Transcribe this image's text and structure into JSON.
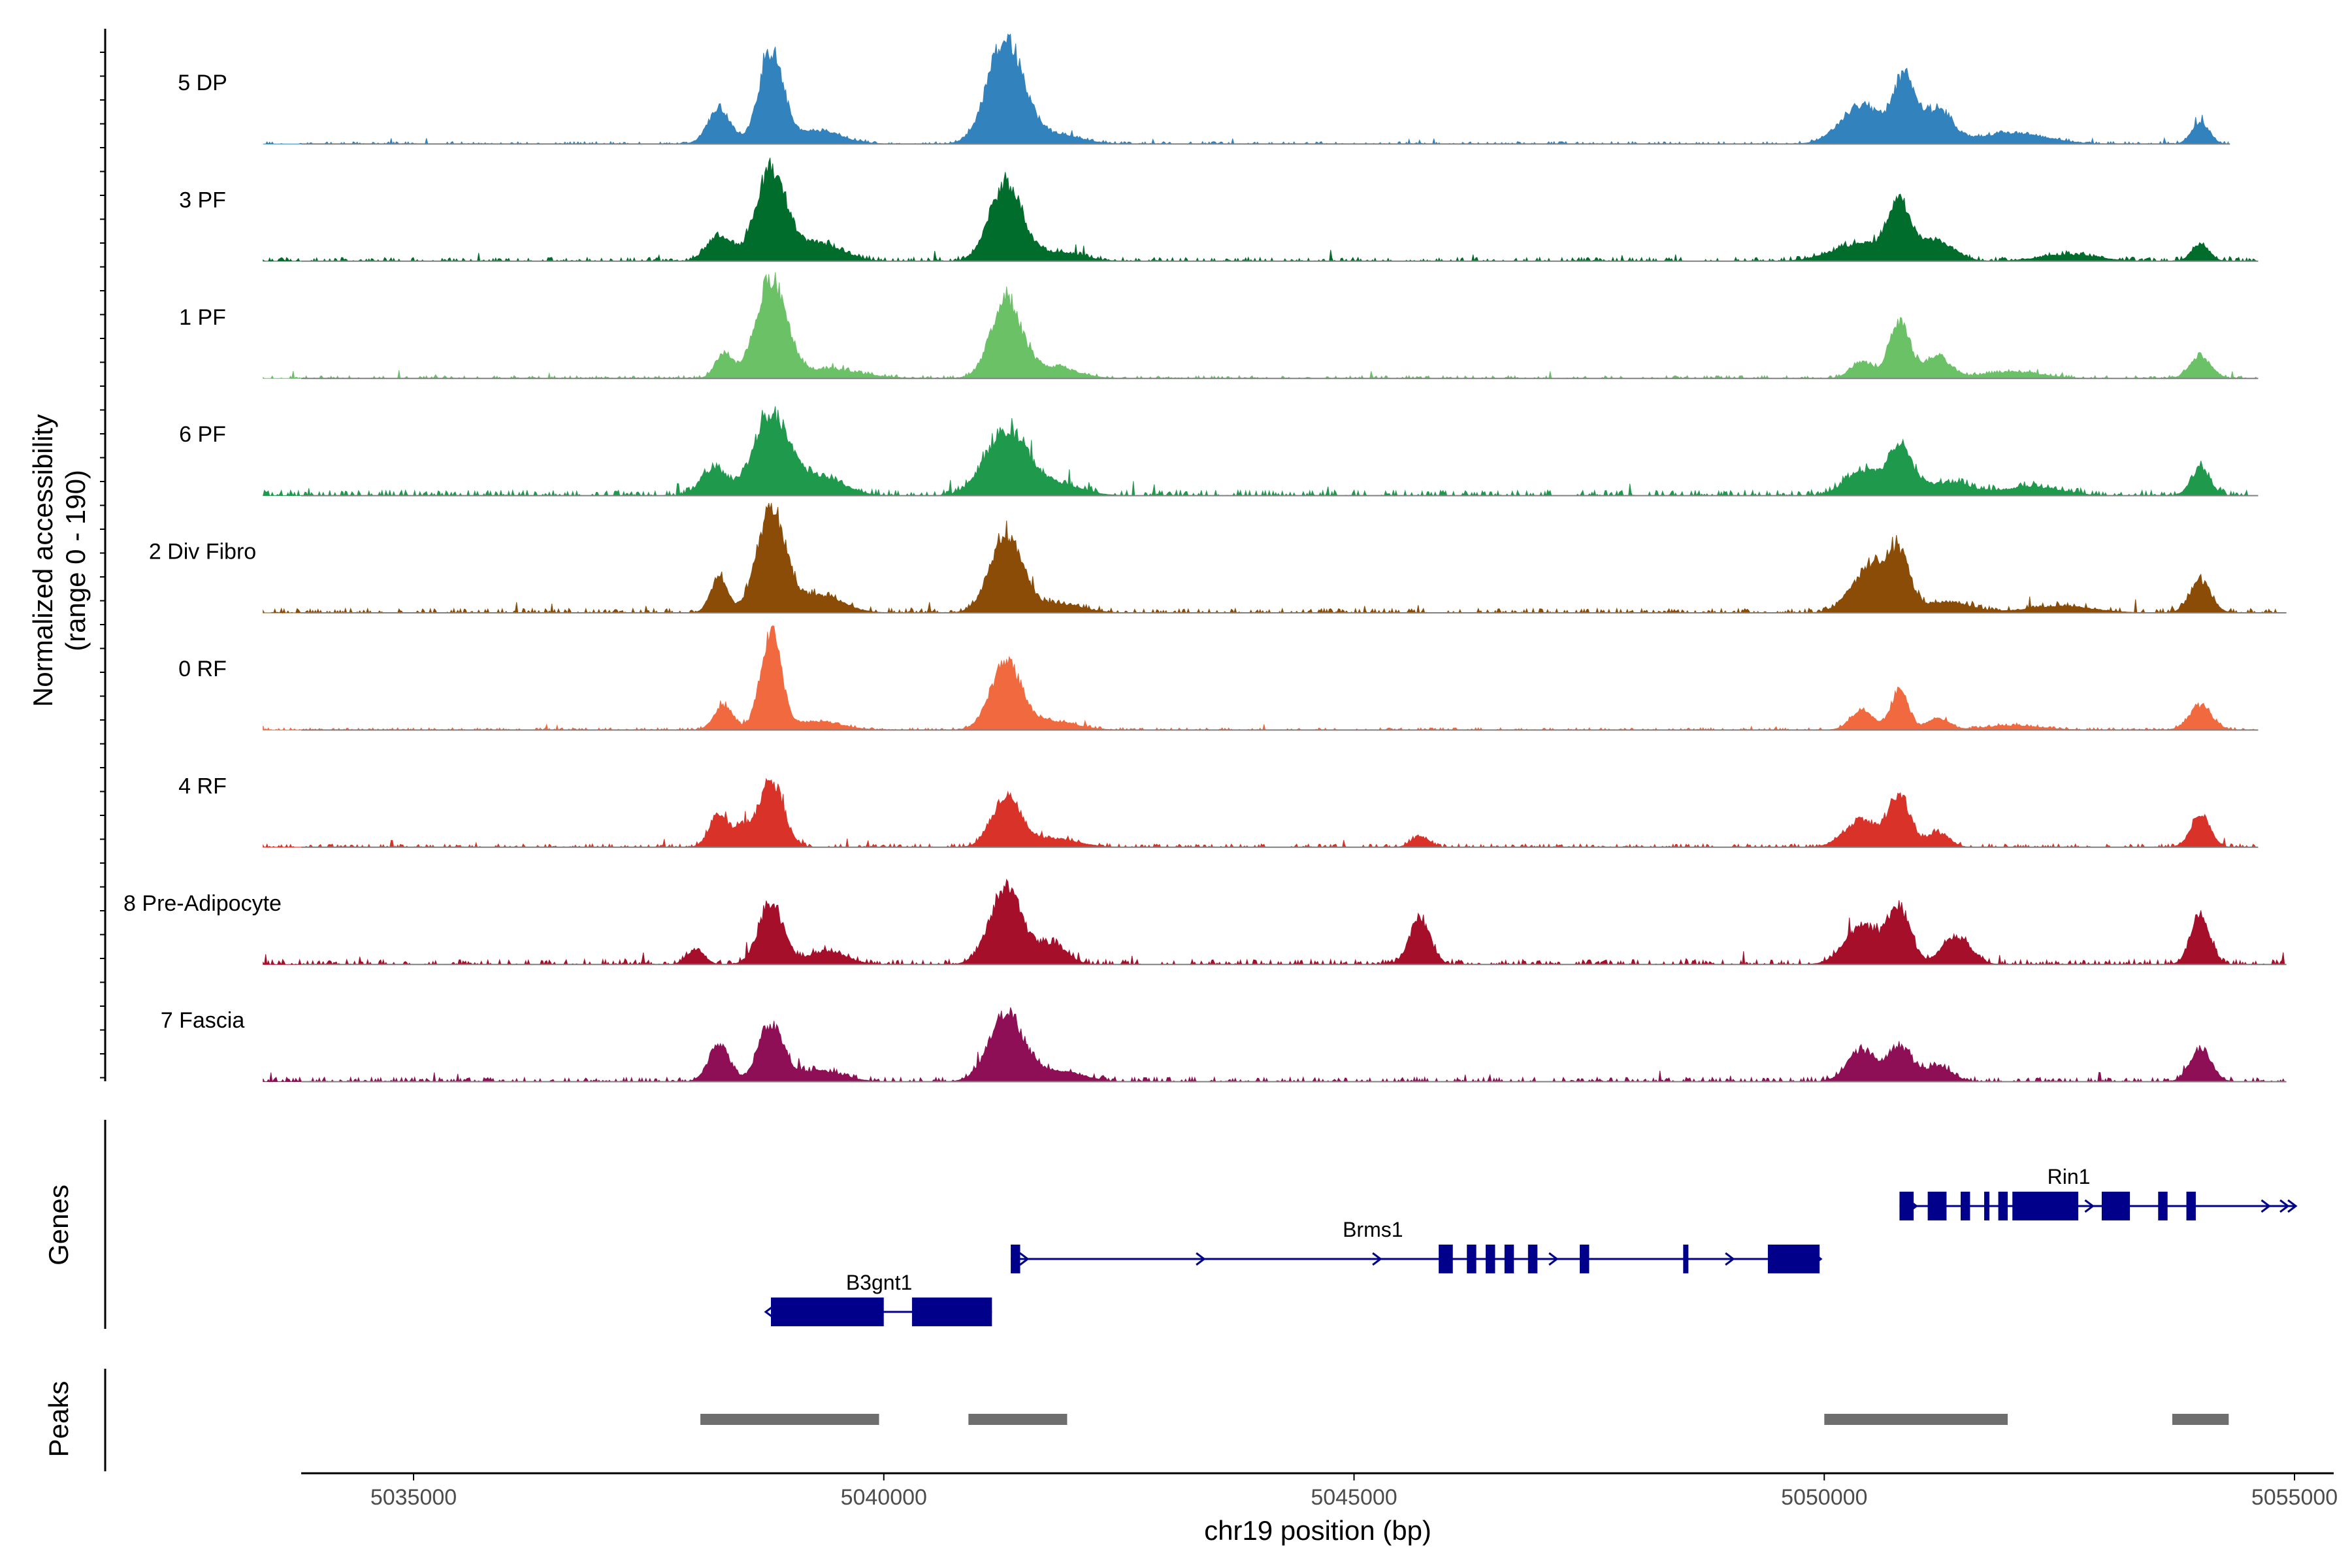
{
  "chart_data": {
    "type": "area",
    "title": "",
    "xlabel": "chr19 position (bp)",
    "ylabel": "Normalized accessibility",
    "ylabel_range": "(range 0 - 190)",
    "y_range": [
      0,
      190
    ],
    "xlim": [
      5033400,
      5055800
    ],
    "x_ticks": [
      5035000,
      5040000,
      5045000,
      5050000,
      5055000
    ],
    "x_tick_labels": [
      "5035000",
      "5040000",
      "5045000",
      "5050000",
      "5055000"
    ],
    "track_x_range": [
      5033400,
      5054900
    ],
    "accessibility_tracks": [
      {
        "name": "5 DP",
        "color": "#3182bd",
        "noise": 0.022,
        "end": 5054300,
        "peaks": [
          [
            5038250,
            0.32,
            120
          ],
          [
            5038800,
            0.83,
            130
          ],
          [
            5039300,
            0.12,
            250
          ],
          [
            5041300,
            0.95,
            190
          ],
          [
            5041850,
            0.08,
            250
          ],
          [
            5050400,
            0.36,
            220
          ],
          [
            5050850,
            0.58,
            110
          ],
          [
            5051200,
            0.31,
            160
          ],
          [
            5052000,
            0.1,
            350
          ],
          [
            5054000,
            0.2,
            90
          ]
        ]
      },
      {
        "name": "3 PF",
        "color": "#006d2c",
        "noise": 0.035,
        "end": 5054600,
        "peaks": [
          [
            5038250,
            0.24,
            130
          ],
          [
            5038800,
            0.82,
            160
          ],
          [
            5039300,
            0.16,
            250
          ],
          [
            5041300,
            0.7,
            170
          ],
          [
            5041850,
            0.08,
            250
          ],
          [
            5050400,
            0.16,
            300
          ],
          [
            5050800,
            0.5,
            120
          ],
          [
            5051200,
            0.18,
            180
          ],
          [
            5052600,
            0.06,
            300
          ],
          [
            5054000,
            0.16,
            90
          ]
        ]
      },
      {
        "name": "1 PF",
        "color": "#6bc266",
        "noise": 0.025,
        "end": 5054600,
        "peaks": [
          [
            5038300,
            0.22,
            90
          ],
          [
            5038800,
            0.88,
            160
          ],
          [
            5039400,
            0.08,
            350
          ],
          [
            5041300,
            0.7,
            160
          ],
          [
            5041800,
            0.1,
            250
          ],
          [
            5050400,
            0.15,
            120
          ],
          [
            5050800,
            0.5,
            110
          ],
          [
            5051200,
            0.2,
            140
          ],
          [
            5052000,
            0.06,
            300
          ],
          [
            5054000,
            0.2,
            110
          ]
        ]
      },
      {
        "name": "6 PF",
        "color": "#1f9a4d",
        "noise": 0.05,
        "end": 5054600,
        "peaks": [
          [
            5038200,
            0.25,
            140
          ],
          [
            5038800,
            0.72,
            180
          ],
          [
            5039300,
            0.18,
            250
          ],
          [
            5041300,
            0.6,
            220
          ],
          [
            5041850,
            0.1,
            250
          ],
          [
            5050400,
            0.22,
            180
          ],
          [
            5050800,
            0.42,
            130
          ],
          [
            5051300,
            0.12,
            250
          ],
          [
            5052200,
            0.08,
            300
          ],
          [
            5054000,
            0.25,
            100
          ]
        ]
      },
      {
        "name": "2 Div Fibro",
        "color": "#8a4c07",
        "noise": 0.04,
        "end": 5054900,
        "peaks": [
          [
            5038250,
            0.32,
            90
          ],
          [
            5038800,
            0.93,
            150
          ],
          [
            5039300,
            0.16,
            250
          ],
          [
            5041300,
            0.72,
            170
          ],
          [
            5041850,
            0.08,
            250
          ],
          [
            5050500,
            0.42,
            200
          ],
          [
            5050800,
            0.45,
            110
          ],
          [
            5051300,
            0.1,
            250
          ],
          [
            5052500,
            0.06,
            350
          ],
          [
            5054000,
            0.3,
            110
          ]
        ]
      },
      {
        "name": "0 RF",
        "color": "#f16a3f",
        "noise": 0.02,
        "end": 5054600,
        "peaks": [
          [
            5038300,
            0.22,
            100
          ],
          [
            5038800,
            0.86,
            110
          ],
          [
            5039300,
            0.08,
            250
          ],
          [
            5041300,
            0.62,
            160
          ],
          [
            5041800,
            0.08,
            250
          ],
          [
            5050400,
            0.18,
            120
          ],
          [
            5050800,
            0.37,
            90
          ],
          [
            5051200,
            0.1,
            120
          ],
          [
            5052000,
            0.04,
            300
          ],
          [
            5054000,
            0.22,
            120
          ]
        ]
      },
      {
        "name": "4 RF",
        "color": "#d93228",
        "noise": 0.03,
        "end": 5054600,
        "peaks": [
          [
            5038250,
            0.32,
            100
          ],
          [
            5038500,
            0.16,
            80
          ],
          [
            5038800,
            0.6,
            130
          ],
          [
            5041300,
            0.45,
            150
          ],
          [
            5041800,
            0.08,
            250
          ],
          [
            5045700,
            0.1,
            90
          ],
          [
            5050400,
            0.25,
            180
          ],
          [
            5050800,
            0.47,
            110
          ],
          [
            5051200,
            0.13,
            120
          ],
          [
            5054000,
            0.3,
            100
          ]
        ]
      },
      {
        "name": "8 Pre-Adipocyte",
        "color": "#a50f2a",
        "noise": 0.045,
        "end": 5054900,
        "peaks": [
          [
            5038000,
            0.14,
            90
          ],
          [
            5038800,
            0.55,
            130
          ],
          [
            5039400,
            0.12,
            200
          ],
          [
            5041300,
            0.7,
            170
          ],
          [
            5041800,
            0.18,
            150
          ],
          [
            5045700,
            0.42,
            110
          ],
          [
            5050400,
            0.35,
            180
          ],
          [
            5050800,
            0.5,
            120
          ],
          [
            5051400,
            0.25,
            150
          ],
          [
            5054000,
            0.45,
            100
          ]
        ]
      },
      {
        "name": "7 Fascia",
        "color": "#8e0f55",
        "noise": 0.04,
        "end": 5054900,
        "peaks": [
          [
            5038250,
            0.34,
            110
          ],
          [
            5038800,
            0.52,
            130
          ],
          [
            5039300,
            0.1,
            250
          ],
          [
            5041300,
            0.63,
            180
          ],
          [
            5041850,
            0.1,
            250
          ],
          [
            5050400,
            0.28,
            150
          ],
          [
            5050800,
            0.32,
            120
          ],
          [
            5051200,
            0.14,
            150
          ],
          [
            5054000,
            0.3,
            110
          ]
        ]
      }
    ],
    "genes_label": "Genes",
    "genes": [
      {
        "name": "B3gnt1",
        "strand": "-",
        "start": 5038800,
        "end": 5041150,
        "row": 3,
        "exons": [
          [
            5038800,
            5040000
          ],
          [
            5040300,
            5041150
          ]
        ]
      },
      {
        "name": "Brms1",
        "strand": "+",
        "start": 5041350,
        "end": 5049950,
        "row": 2,
        "exons": [
          [
            5041350,
            5041450
          ],
          [
            5045900,
            5046050
          ],
          [
            5046200,
            5046300
          ],
          [
            5046400,
            5046500
          ],
          [
            5046600,
            5046700
          ],
          [
            5046850,
            5046950
          ],
          [
            5047400,
            5047500
          ],
          [
            5048500,
            5048550
          ],
          [
            5049400,
            5049950
          ]
        ]
      },
      {
        "name": "Rin1",
        "strand": "+",
        "start": 5050800,
        "end": 5055000,
        "row": 1,
        "exons": [
          [
            5050800,
            5050950
          ],
          [
            5051100,
            5051300
          ],
          [
            5051450,
            5051550
          ],
          [
            5051700,
            5051750
          ],
          [
            5051850,
            5051950
          ],
          [
            5052000,
            5052700
          ],
          [
            5052950,
            5053250
          ],
          [
            5053550,
            5053650
          ],
          [
            5053850,
            5053950
          ]
        ]
      }
    ],
    "peaks_label": "Peaks",
    "peaks": [
      [
        5038050,
        5039950
      ],
      [
        5040900,
        5041950
      ],
      [
        5050000,
        5051950
      ],
      [
        5053700,
        5054300
      ]
    ]
  },
  "colors": {
    "gene": "#00008b",
    "peak": "#6e6e6e",
    "axis": "#000000",
    "baseline": "#808080",
    "tick_text": "#4d4d4d"
  }
}
